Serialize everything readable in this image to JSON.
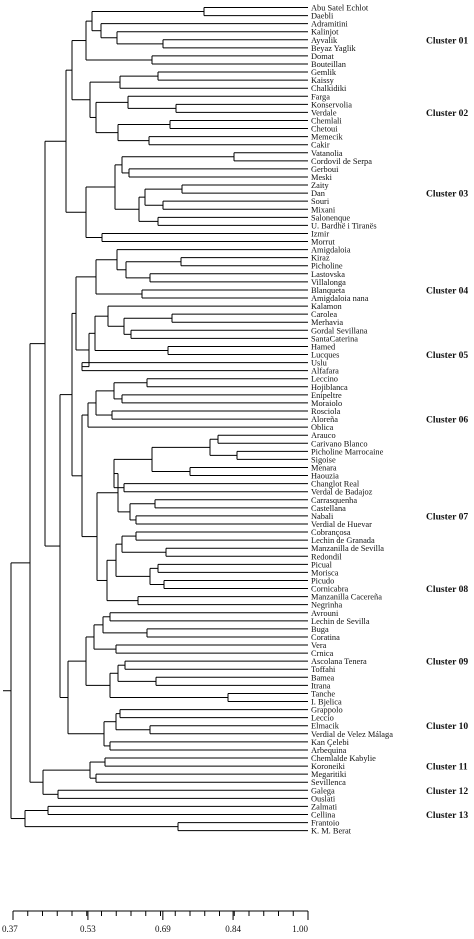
{
  "leaves": [
    "Abu Satel Echlot",
    "Daebli",
    "Adramitini",
    "Kalinjot",
    "Ayvalik",
    "Beyaz Yaglik",
    "Domat",
    "Bouteillan",
    "Gemlik",
    "Kaissy",
    "Chalkidiki",
    "Farga",
    "Konservolia",
    "Verdale",
    "Chemlali",
    "Chetoui",
    "Memecik",
    "Cakir",
    "Vatanolia",
    "Cordovil de Serpa",
    "Gerboui",
    "Meski",
    "Zaity",
    "Dan",
    "Souri",
    "Mixani",
    "Salonenque",
    "U. Bardhë i Tiranës",
    "Izmir",
    "Morrut",
    "Amigdaloia",
    "Kiraz",
    "Picholine",
    "Lastovska",
    "Villalonga",
    "Blanqueta",
    "Amigdaloia nana",
    "Kalamon",
    "Carolea",
    "Merhavia",
    "Gordal Sevillana",
    "SantaCaterina",
    "Hamed",
    "Lucques",
    "Uslu",
    "Alfafara",
    "Leccino",
    "Hojiblanca",
    "Enipeltre",
    "Moraiolo",
    "Rosciola",
    "Aloreña",
    "Oblica",
    "Arauco",
    "Carivano Blanco",
    "Picholine Marrocaine",
    "Sigoise",
    "Menara",
    "Haouzia",
    "Changlot Real",
    "Verdal de Badajoz",
    "Carrasquenha",
    "Castellana",
    "Nabali",
    "Verdial de Huevar",
    "Cobrançosa",
    "Lechin de Granada",
    "Manzanilla de Sevilla",
    "Redondil",
    "Picual",
    "Morisca",
    "Picudo",
    "Cornicabra",
    "Manzanilla Cacereña",
    "Negrinha",
    "Avrouni",
    "Lechin de Sevilla",
    "Buga",
    "Coratina",
    "Vera",
    "Crnica",
    "Ascolana Tenera",
    "Toffahi",
    "Bamea",
    "Itrana",
    "Tanche",
    "I. Bjelica",
    "Grappolo",
    "Leccio",
    "Elmacik",
    "Verdial de Velez Málaga",
    "Kan Çelebi",
    "Arbequina",
    "Chemlalde Kabylie",
    "Koroneiki",
    "Megaritiki",
    "Sevillenca",
    "Galega",
    "Ouslati",
    "Zalmati",
    "Cellina",
    "Frantoio",
    "K. M. Berat"
  ],
  "clusters": [
    "Cluster 01",
    "Cluster 02",
    "Cluster 03",
    "Cluster 04",
    "Cluster 05",
    "Cluster 06",
    "Cluster 07",
    "Cluster 08",
    "Cluster 09",
    "Cluster 10",
    "Cluster 11",
    "Cluster 12",
    "Cluster 13"
  ],
  "axis": {
    "scale": "similarity",
    "range": [
      0.37,
      1.0
    ],
    "tick_labels": [
      "0.37",
      "0.53",
      "0.69",
      "0.84",
      "1.00"
    ],
    "tick_values": [
      0.37,
      0.53,
      0.69,
      0.84,
      1.0
    ]
  }
}
